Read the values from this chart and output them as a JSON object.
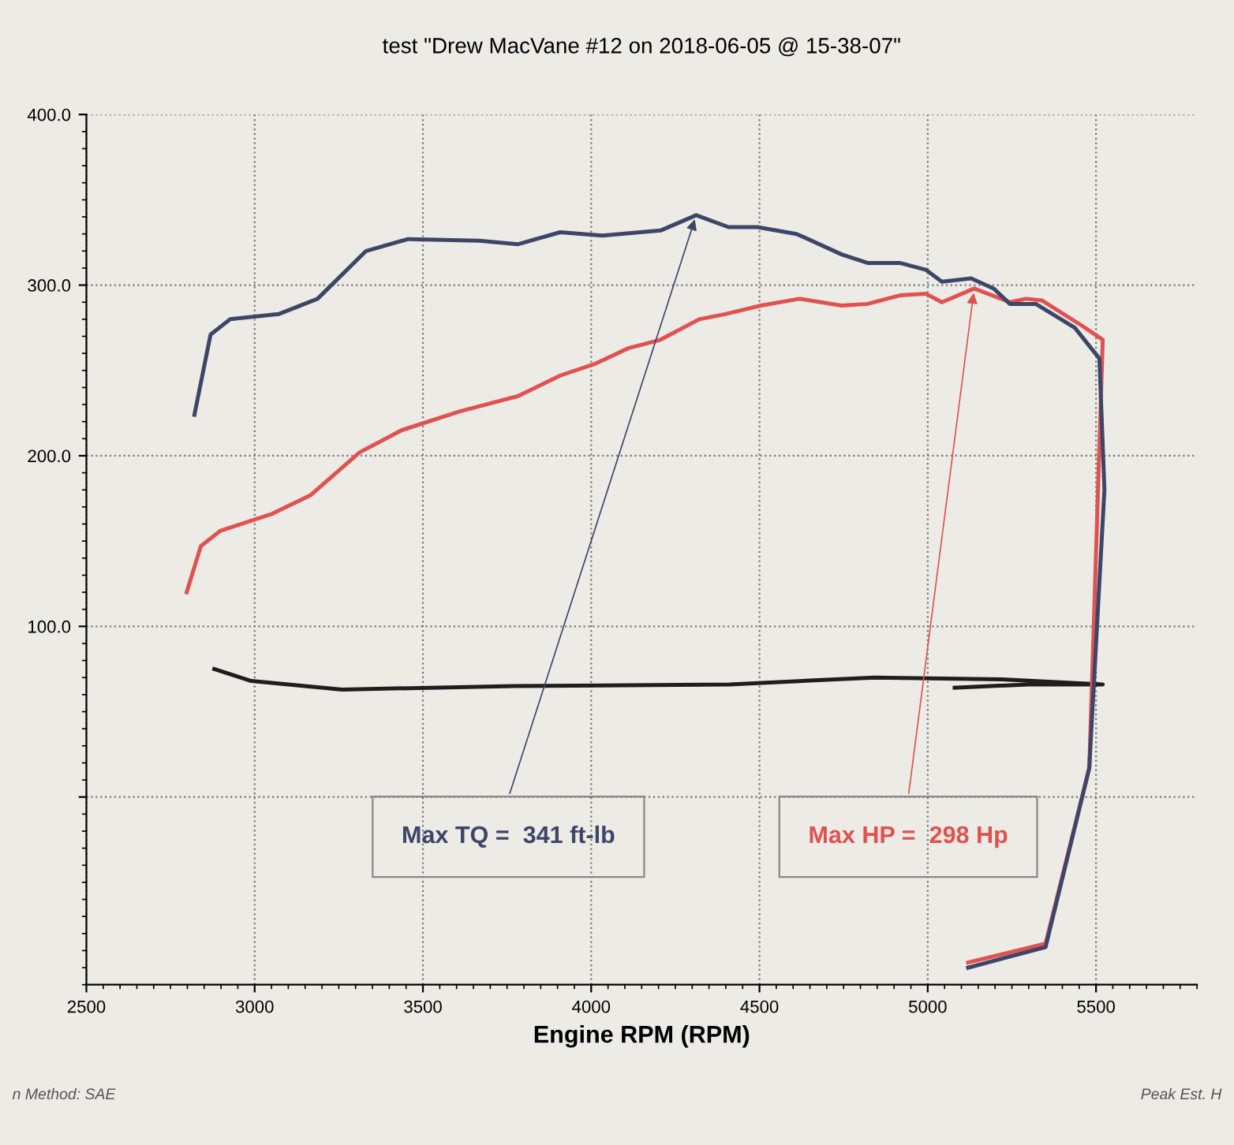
{
  "chart_data": {
    "type": "line",
    "title": "test \"Drew MacVane #12 on 2018-06-05 @ 15-38-07\"",
    "xlabel": "Engine RPM (RPM)",
    "series": [
      {
        "color": "#3d4668",
        "x": [
          2821,
          2869,
          2927,
          3071,
          3187,
          3331,
          3456,
          3667,
          3783,
          3908,
          4033,
          4206,
          4312,
          4408,
          4494,
          4610,
          4744,
          4821,
          4917,
          4994,
          5042,
          5129,
          5196,
          5244,
          5321,
          5437,
          5510,
          5525,
          5480,
          5350,
          5120
        ],
        "values": [
          224,
          271,
          280,
          283,
          292,
          320,
          327,
          326,
          324,
          331,
          329,
          332,
          341,
          334,
          334,
          330,
          318,
          313,
          313,
          309,
          302,
          304,
          298,
          289,
          289,
          275,
          257,
          180,
          17,
          -88,
          -100
        ]
      },
      {
        "color": "#e0524f",
        "x": [
          2798,
          2840,
          2898,
          3052,
          3167,
          3312,
          3437,
          3610,
          3783,
          3908,
          4013,
          4110,
          4206,
          4321,
          4398,
          4504,
          4619,
          4744,
          4821,
          4917,
          4994,
          5042,
          5138,
          5244,
          5292,
          5340,
          5460,
          5520,
          5480,
          5350,
          5120
        ],
        "values": [
          120,
          147,
          156,
          166,
          177,
          202,
          215,
          226,
          235,
          247,
          254,
          263,
          268,
          280,
          283,
          288,
          292,
          288,
          289,
          294,
          295,
          290,
          298,
          290,
          292,
          291,
          276,
          268,
          17,
          -86,
          -97
        ]
      },
      {
        "color": "#1e1e1e",
        "x": [
          2880,
          2990,
          3260,
          3770,
          4410,
          4840,
          5220,
          5520,
          5300,
          5080
        ],
        "values": [
          75,
          68,
          63,
          65,
          66,
          70,
          69,
          66,
          66,
          64
        ]
      }
    ],
    "annotations": [
      "Max TQ =  341 ft-lb",
      "Max HP =  298 Hp",
      "n Method: SAE",
      "Peak Est. H"
    ],
    "xlim": [
      2500,
      5800
    ],
    "ylim": [
      -110,
      400
    ],
    "xticks": [
      {
        "value": 2500,
        "label": "2500"
      },
      3000,
      3500,
      4000,
      4500,
      5000,
      5500
    ],
    "yticks": [
      {
        "value": 0,
        "label": null
      },
      {
        "value": 100,
        "label": "100.0"
      },
      {
        "value": 200,
        "label": "200.0"
      },
      {
        "value": 300,
        "label": "300.0"
      },
      {
        "value": 400,
        "label": "400.0"
      }
    ],
    "grid": true,
    "marker": "none",
    "line_style": "solid",
    "legend": false
  }
}
